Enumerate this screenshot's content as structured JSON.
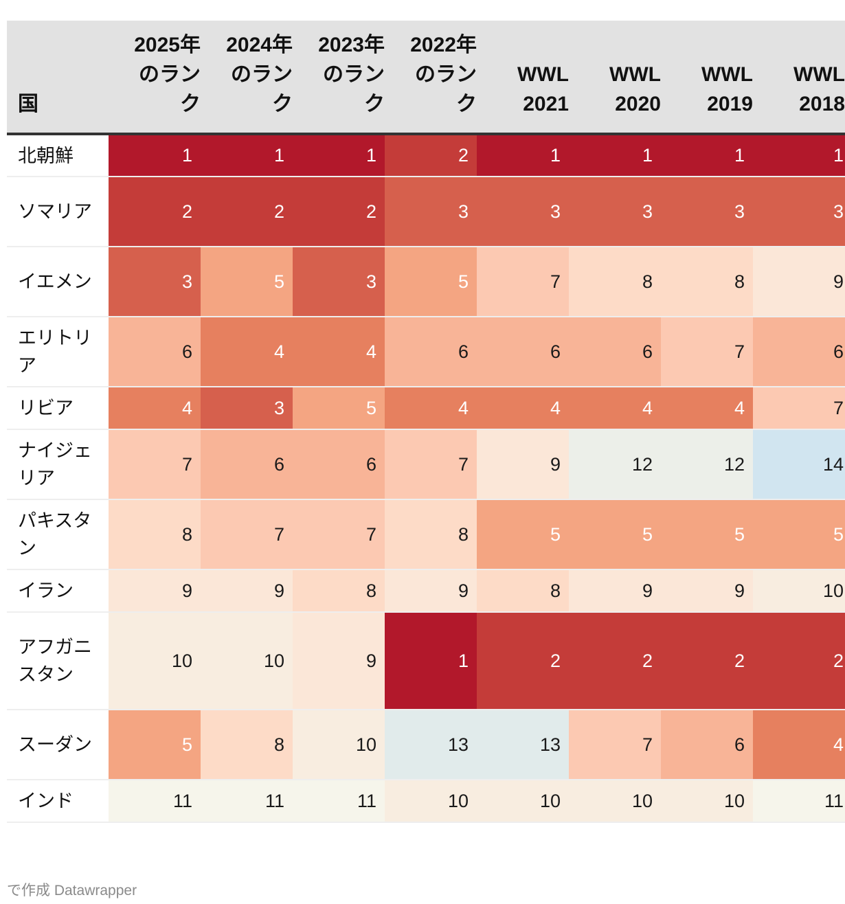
{
  "chart_data": {
    "type": "table",
    "columns": [
      "国",
      "2025年のランク",
      "2024年のランク",
      "2023年のランク",
      "2022年のランク",
      "WWL 2021",
      "WWL 2020",
      "WWL 2019",
      "WWL 2018"
    ],
    "rows": [
      {
        "country": "北朝鮮",
        "values": [
          1,
          1,
          1,
          2,
          1,
          1,
          1,
          1
        ]
      },
      {
        "country": "ソマリア",
        "values": [
          2,
          2,
          2,
          3,
          3,
          3,
          3,
          3
        ]
      },
      {
        "country": "イエメン",
        "values": [
          3,
          5,
          3,
          5,
          7,
          8,
          8,
          9
        ]
      },
      {
        "country": "エリトリア",
        "values": [
          6,
          4,
          4,
          6,
          6,
          6,
          7,
          6
        ]
      },
      {
        "country": "リビア",
        "values": [
          4,
          3,
          5,
          4,
          4,
          4,
          4,
          7
        ]
      },
      {
        "country": "ナイジェリア",
        "values": [
          7,
          6,
          6,
          7,
          9,
          12,
          12,
          14
        ]
      },
      {
        "country": "パキスタン",
        "values": [
          8,
          7,
          7,
          8,
          5,
          5,
          5,
          5
        ]
      },
      {
        "country": "イラン",
        "values": [
          9,
          9,
          8,
          9,
          8,
          9,
          9,
          10
        ]
      },
      {
        "country": "アフガニスタン",
        "values": [
          10,
          10,
          9,
          1,
          2,
          2,
          2,
          2
        ]
      },
      {
        "country": "スーダン",
        "values": [
          5,
          8,
          10,
          13,
          13,
          7,
          6,
          4
        ]
      },
      {
        "country": "インド",
        "values": [
          11,
          11,
          11,
          10,
          10,
          10,
          10,
          11
        ]
      }
    ],
    "color_scale": {
      "1": "#b2182b",
      "2": "#c43c39",
      "3": "#d6604d",
      "4": "#e6805f",
      "5": "#f4a582",
      "6": "#f8b497",
      "7": "#fcc9b2",
      "8": "#fddbc7",
      "9": "#fbe7d8",
      "10": "#f8ede0",
      "11": "#f6f5eb",
      "12": "#ecefe9",
      "13": "#e1ebeb",
      "14": "#d1e5f0"
    }
  },
  "credit": "で作成 Datawrapper"
}
